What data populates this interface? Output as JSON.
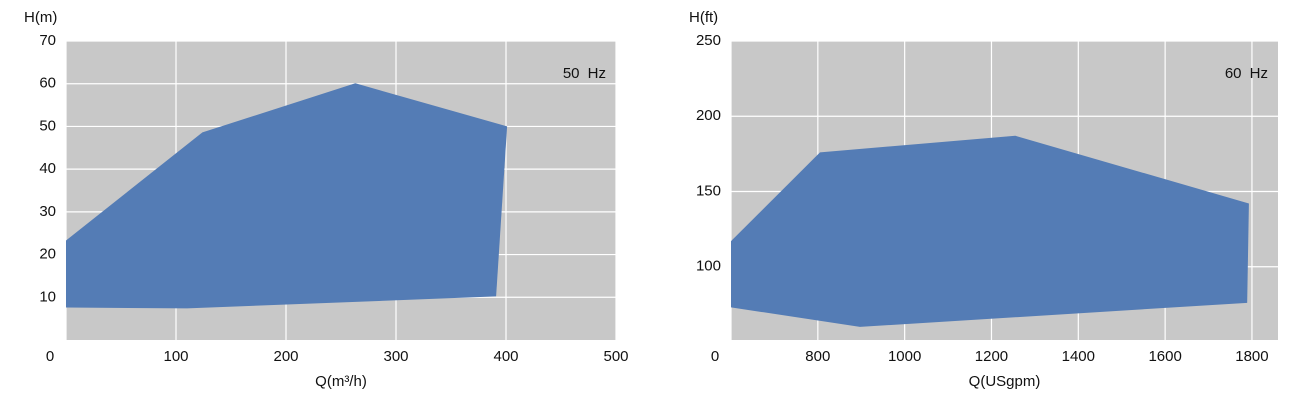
{
  "chart_data": [
    {
      "type": "area",
      "y_label": "H(m)",
      "x_label": "Q(m³/h)",
      "annotation": "50 Hz",
      "x": [
        0,
        124,
        263,
        401,
        391,
        110,
        0
      ],
      "values": [
        23.3,
        48.6,
        60.1,
        50,
        10.2,
        7.4,
        7.6
      ],
      "color": "#547cb5",
      "xlim": [
        0,
        500
      ],
      "xticks": [
        0,
        100,
        200,
        300,
        400,
        500
      ],
      "ylim": [
        0,
        70
      ],
      "yticks": [
        10,
        20,
        30,
        40,
        50,
        60,
        70
      ],
      "grid": true
    },
    {
      "type": "area",
      "y_label": "H(ft)",
      "x_label": "Q(USgpm)",
      "annotation": "60 Hz",
      "x": [
        600,
        805,
        1255,
        1793,
        1789,
        897,
        600
      ],
      "values": [
        117,
        176,
        187,
        142,
        76,
        60,
        73
      ],
      "color": "#547cb5",
      "xlim": [
        600,
        1860
      ],
      "xticks": [
        {
          "value": 600,
          "label": "0"
        },
        800,
        1000,
        1200,
        1400,
        1600,
        1800
      ],
      "ylim": [
        51.3,
        250
      ],
      "yticks": [
        100,
        150,
        200,
        250
      ],
      "grid": true
    }
  ]
}
